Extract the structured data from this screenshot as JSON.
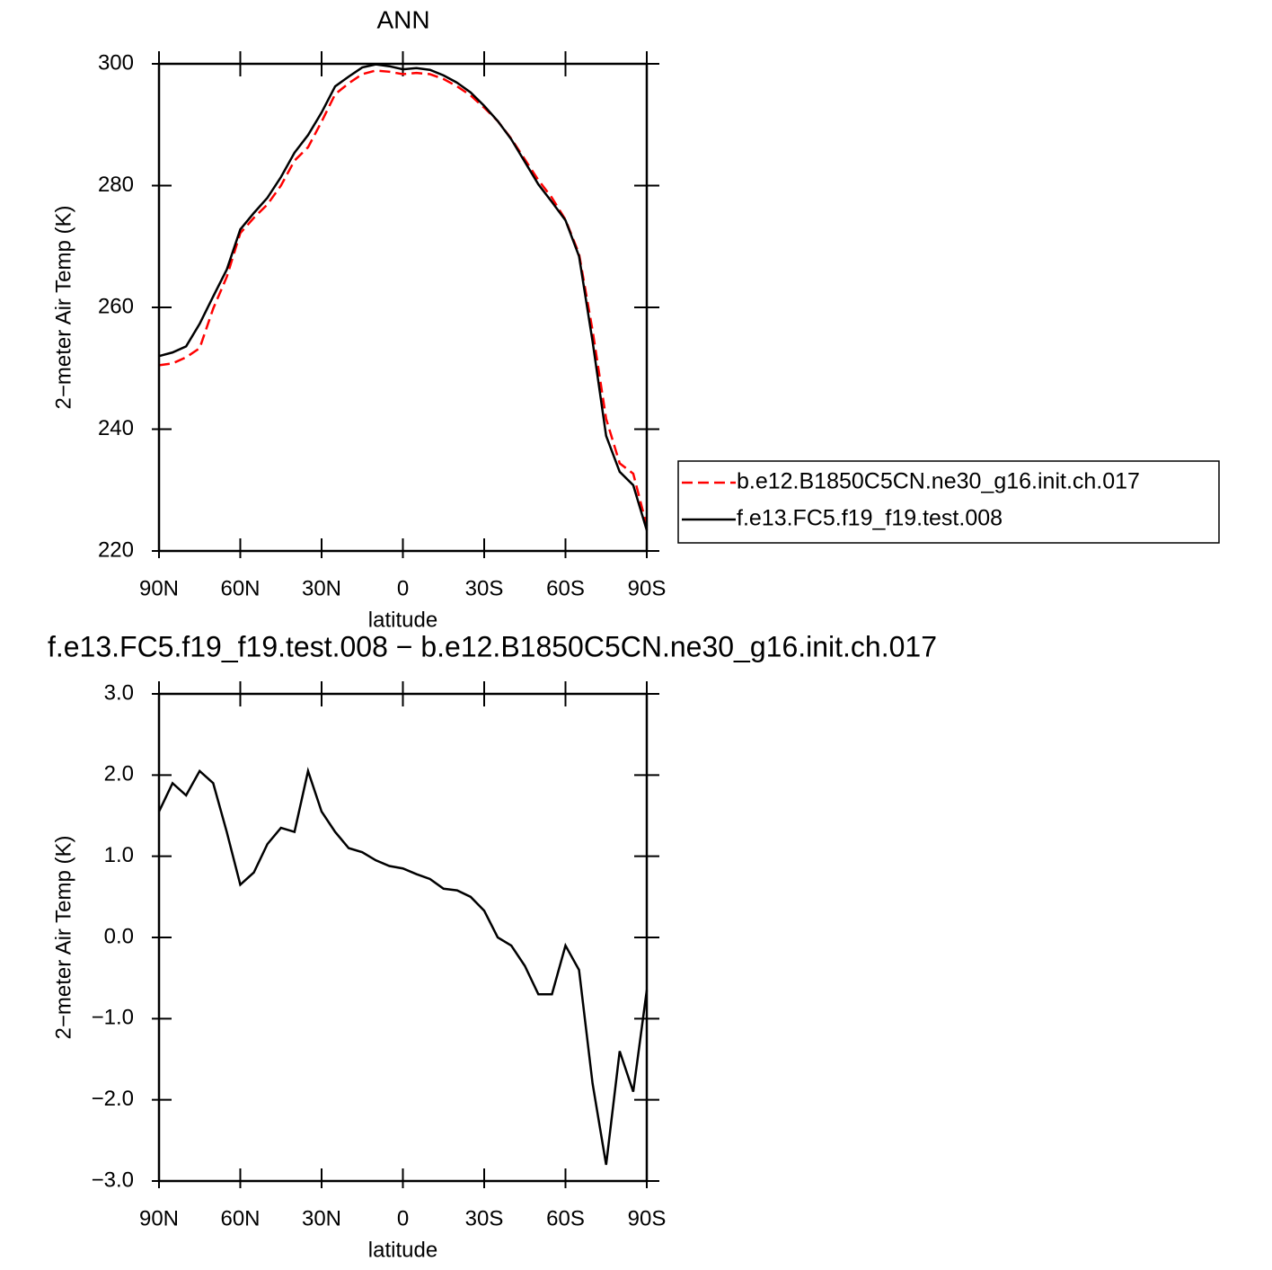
{
  "chart_data": [
    {
      "type": "line",
      "title": "ANN",
      "xlabel": "latitude",
      "ylabel": "2−meter Air Temp (K)",
      "x": [
        90,
        85,
        80,
        75,
        70,
        65,
        60,
        55,
        50,
        45,
        40,
        35,
        30,
        25,
        20,
        15,
        10,
        5,
        0,
        -5,
        -10,
        -15,
        -20,
        -25,
        -30,
        -35,
        -40,
        -45,
        -50,
        -55,
        -60,
        -65,
        -70,
        -75,
        -80,
        -85,
        -90
      ],
      "series": [
        {
          "name": "b.e12.B1850C5CN.ne30_g16.init.ch.017",
          "color": "#ff0000",
          "dash": true,
          "values": [
            250.5,
            250.8,
            251.8,
            253.3,
            259.8,
            265.0,
            272.2,
            274.7,
            276.9,
            280.0,
            284.1,
            286.3,
            290.5,
            295.0,
            296.8,
            298.3,
            298.9,
            298.7,
            298.3,
            298.5,
            298.3,
            297.5,
            296.3,
            294.8,
            292.8,
            290.6,
            287.7,
            284.3,
            280.9,
            278.0,
            274.4,
            268.8,
            256.2,
            241.7,
            234.4,
            232.7,
            224.1
          ]
        },
        {
          "name": "f.e13.FC5.f19_f19.test.008",
          "color": "#000000",
          "dash": false,
          "values": [
            252.0,
            252.6,
            253.6,
            257.3,
            261.8,
            266.2,
            272.8,
            275.5,
            278.0,
            281.4,
            285.4,
            288.3,
            292.0,
            296.3,
            297.9,
            299.4,
            299.9,
            299.6,
            299.1,
            299.3,
            299.0,
            298.1,
            296.9,
            295.3,
            293.1,
            290.6,
            287.6,
            283.9,
            280.2,
            277.3,
            274.3,
            268.4,
            254.4,
            238.9,
            233.0,
            230.8,
            223.4
          ]
        }
      ],
      "xlim": [
        90,
        -90
      ],
      "xticks": [
        {
          "value": 90,
          "label": "90N"
        },
        {
          "value": 60,
          "label": "60N"
        },
        {
          "value": 30,
          "label": "30N"
        },
        0,
        {
          "value": -30,
          "label": "30S"
        },
        {
          "value": -60,
          "label": "60S"
        },
        {
          "value": -90,
          "label": "90S"
        }
      ],
      "ylim": [
        220,
        300
      ],
      "yticks": [
        220,
        240,
        260,
        280,
        300
      ],
      "legend": "right"
    },
    {
      "type": "line",
      "title": "f.e13.FC5.f19_f19.test.008 − b.e12.B1850C5CN.ne30_g16.init.ch.017",
      "xlabel": "latitude",
      "ylabel": "2−meter Air Temp (K)",
      "x": [
        90,
        85,
        80,
        75,
        70,
        65,
        60,
        55,
        50,
        45,
        40,
        35,
        30,
        25,
        20,
        15,
        10,
        5,
        0,
        -5,
        -10,
        -15,
        -20,
        -25,
        -30,
        -35,
        -40,
        -45,
        -50,
        -55,
        -60,
        -65,
        -70,
        -75,
        -80,
        -85,
        -90
      ],
      "values": [
        1.55,
        1.9,
        1.75,
        2.05,
        1.9,
        1.3,
        0.65,
        0.8,
        1.15,
        1.35,
        1.3,
        2.05,
        1.55,
        1.3,
        1.1,
        1.05,
        0.95,
        0.88,
        0.85,
        0.78,
        0.72,
        0.6,
        0.58,
        0.5,
        0.33,
        0.0,
        -0.1,
        -0.35,
        -0.7,
        -0.7,
        -0.1,
        -0.4,
        -1.8,
        -2.8,
        -1.4,
        -1.9,
        -0.65
      ],
      "color": "#000000",
      "xlim": [
        90,
        -90
      ],
      "xticks": [
        {
          "value": 90,
          "label": "90N"
        },
        {
          "value": 60,
          "label": "60N"
        },
        {
          "value": 30,
          "label": "30N"
        },
        0,
        {
          "value": -30,
          "label": "30S"
        },
        {
          "value": -60,
          "label": "60S"
        },
        {
          "value": -90,
          "label": "90S"
        }
      ],
      "ylim": [
        -3,
        3
      ],
      "yticks": [
        {
          "value": -3,
          "label": "−3.0"
        },
        {
          "value": -2,
          "label": "−2.0"
        },
        {
          "value": -1,
          "label": "−1.0"
        },
        {
          "value": 0,
          "label": "0.0"
        },
        {
          "value": 1,
          "label": "1.0"
        },
        {
          "value": 2,
          "label": "2.0"
        },
        {
          "value": 3,
          "label": "3.0"
        }
      ]
    }
  ]
}
